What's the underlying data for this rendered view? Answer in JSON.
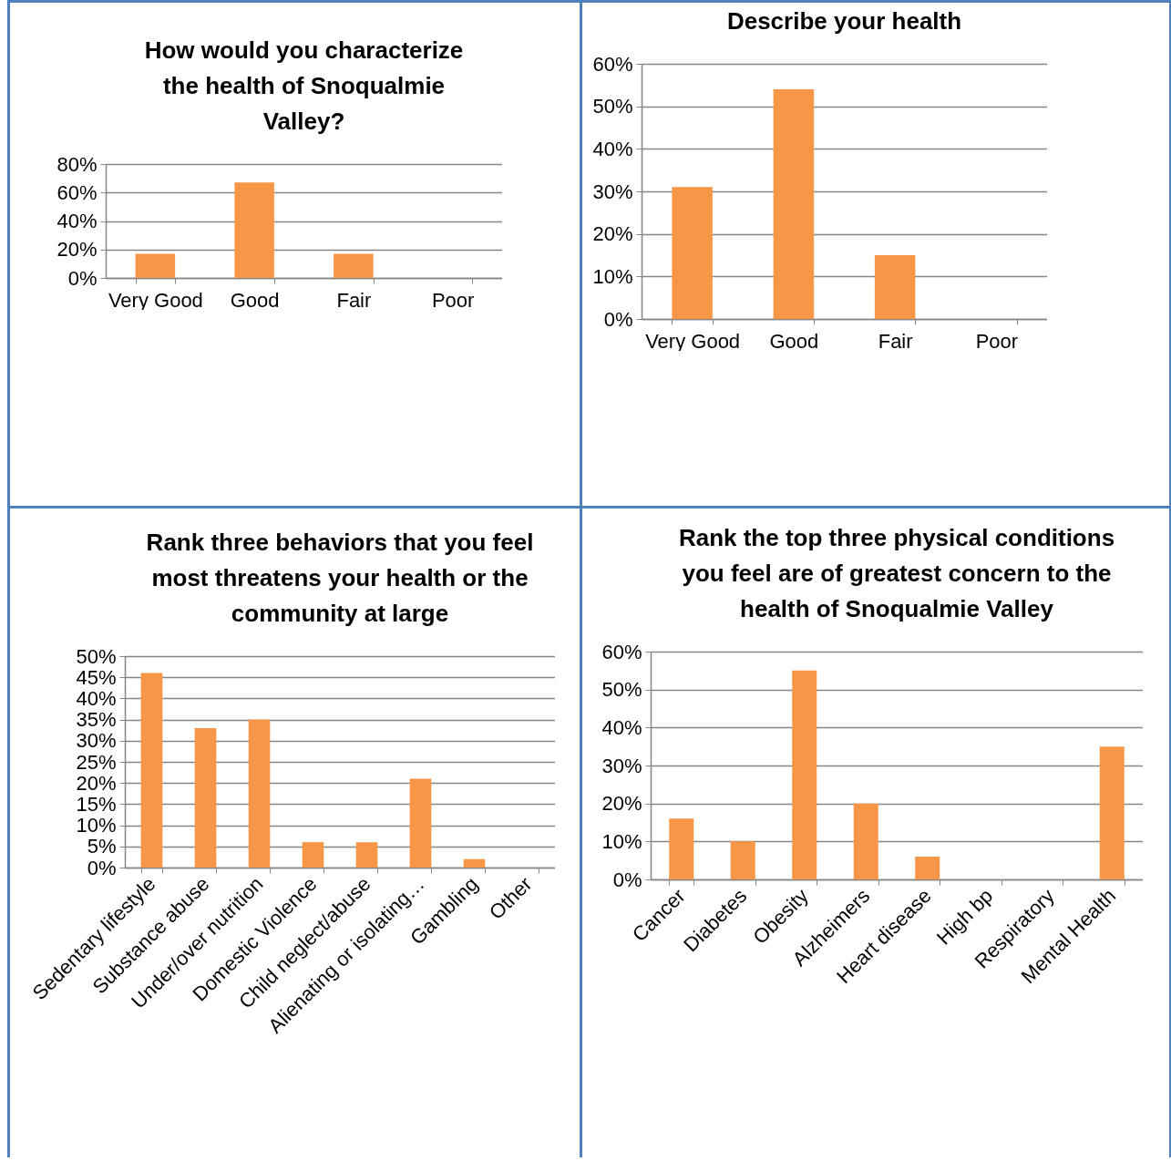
{
  "chart_data": [
    {
      "type": "bar",
      "title": "How would you characterize the health of Snoqualmie Valley?",
      "categories": [
        "Very Good",
        "Good",
        "Fair",
        "Poor"
      ],
      "values": [
        17,
        67,
        17,
        0
      ],
      "color": "#f79646",
      "ylim": [
        0,
        80
      ],
      "yticks": [
        {
          "value": 0,
          "label": "0%"
        },
        {
          "value": 20,
          "label": "20%"
        },
        {
          "value": 40,
          "label": "40%"
        },
        {
          "value": 60,
          "label": "60%"
        },
        {
          "value": 80,
          "label": "80%"
        }
      ],
      "grid": "y"
    },
    {
      "type": "bar",
      "title": "Describe your health",
      "categories": [
        "Very Good",
        "Good",
        "Fair",
        "Poor"
      ],
      "values": [
        31,
        54,
        15,
        0
      ],
      "color": "#f79646",
      "ylim": [
        0,
        60
      ],
      "yticks": [
        {
          "value": 0,
          "label": "0%"
        },
        {
          "value": 10,
          "label": "10%"
        },
        {
          "value": 20,
          "label": "20%"
        },
        {
          "value": 30,
          "label": "30%"
        },
        {
          "value": 40,
          "label": "40%"
        },
        {
          "value": 50,
          "label": "50%"
        },
        {
          "value": 60,
          "label": "60%"
        }
      ],
      "grid": "y"
    },
    {
      "type": "bar",
      "title": "Rank three behaviors that you feel most threatens your health or the community at large",
      "categories": [
        "Sedentary lifestyle",
        "Substance abuse",
        "Under/over nutrition",
        "Domestic Violence",
        "Child neglect/abuse",
        "Alienating or isolating…",
        "Gambling",
        "Other"
      ],
      "values": [
        46,
        33,
        35,
        6,
        6,
        21,
        2,
        0
      ],
      "color": "#f79646",
      "ylim": [
        0,
        50
      ],
      "yticks": [
        {
          "value": 0,
          "label": "0%"
        },
        {
          "value": 5,
          "label": "5%"
        },
        {
          "value": 10,
          "label": "10%"
        },
        {
          "value": 15,
          "label": "15%"
        },
        {
          "value": 20,
          "label": "20%"
        },
        {
          "value": 25,
          "label": "25%"
        },
        {
          "value": 30,
          "label": "30%"
        },
        {
          "value": 35,
          "label": "35%"
        },
        {
          "value": 40,
          "label": "40%"
        },
        {
          "value": 45,
          "label": "45%"
        },
        {
          "value": 50,
          "label": "50%"
        }
      ],
      "grid": "y"
    },
    {
      "type": "bar",
      "title": "Rank the top three physical conditions you feel are of greatest concern to the health of Snoqualmie Valley",
      "categories": [
        "Cancer",
        "Diabetes",
        "Obesity",
        "Alzheimers",
        "Heart disease",
        "High bp",
        "Respiratory",
        "Mental Health"
      ],
      "values": [
        16,
        10,
        55,
        20,
        6,
        0,
        0,
        35
      ],
      "color": "#f79646",
      "ylim": [
        0,
        60
      ],
      "yticks": [
        {
          "value": 0,
          "label": "0%"
        },
        {
          "value": 10,
          "label": "10%"
        },
        {
          "value": 20,
          "label": "20%"
        },
        {
          "value": 30,
          "label": "30%"
        },
        {
          "value": 40,
          "label": "40%"
        },
        {
          "value": 50,
          "label": "50%"
        },
        {
          "value": 60,
          "label": "60%"
        }
      ],
      "grid": "y"
    }
  ]
}
